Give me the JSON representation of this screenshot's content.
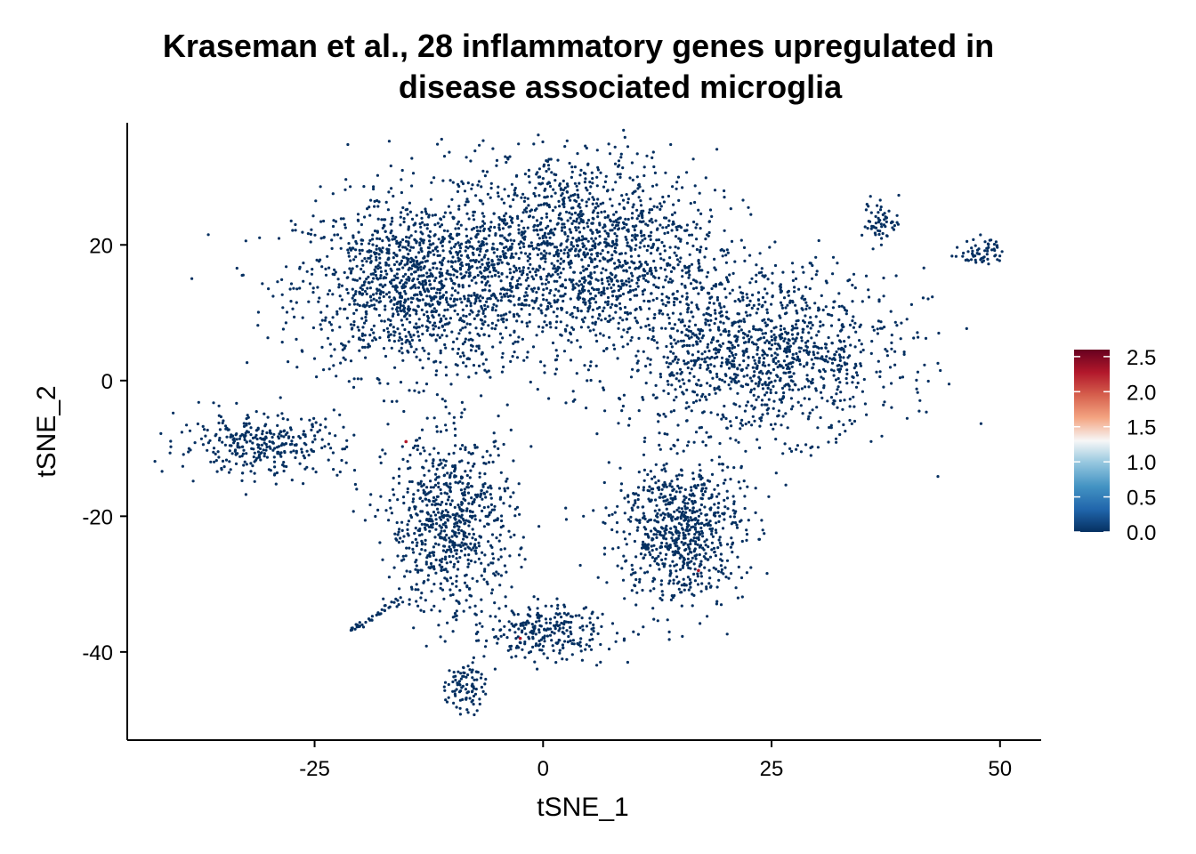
{
  "chart_data": {
    "type": "scatter",
    "title_lines": [
      "Kraseman et al., 28 inflammatory genes upregulated in",
      "disease associated microglia"
    ],
    "xlabel": "tSNE_1",
    "ylabel": "tSNE_2",
    "xlim": [
      -45.5,
      54.5
    ],
    "ylim": [
      -53,
      38
    ],
    "x_ticks": [
      -25,
      0,
      25,
      50
    ],
    "y_ticks": [
      20,
      0,
      -20,
      -40
    ],
    "point_color": "#053061",
    "highlight_color": "#B2182B",
    "colorbar": {
      "min": 0,
      "max": 2.6,
      "ticks": [
        "0.0",
        "0.5",
        "1.0",
        "1.5",
        "2.0",
        "2.5"
      ],
      "tick_values": [
        0,
        0.5,
        1.0,
        1.5,
        2.0,
        2.5
      ],
      "stops": [
        "#053061",
        "#2166AC",
        "#4393C3",
        "#92C5DE",
        "#F7F7F7",
        "#F4A582",
        "#D6604D",
        "#B2182B",
        "#67001F"
      ],
      "placement": "right"
    },
    "clusters": [
      {
        "name": "upper-left-lobe",
        "cx": -14,
        "cy": 14,
        "sx": 6.5,
        "sy": 6.5,
        "n": 1300
      },
      {
        "name": "upper-center-lobe",
        "cx": 4,
        "cy": 19,
        "sx": 7.5,
        "sy": 7.5,
        "n": 1600
      },
      {
        "name": "right-lobe",
        "cx": 24,
        "cy": 4,
        "sx": 7.5,
        "sy": 6,
        "n": 1200
      },
      {
        "name": "left-island",
        "cx": -31,
        "cy": -9.5,
        "sx": 4.5,
        "sy": 2.2,
        "n": 320
      },
      {
        "name": "lower-center-branch",
        "cx": -10,
        "cy": -21,
        "sx": 3.5,
        "sy": 6.5,
        "n": 750
      },
      {
        "name": "lower-right-branch",
        "cx": 15,
        "cy": -22,
        "sx": 3.5,
        "sy": 5.5,
        "n": 750
      },
      {
        "name": "bottom-tail",
        "cx": 0,
        "cy": -37,
        "sx": 4,
        "sy": 2,
        "n": 260
      },
      {
        "name": "bottom-small",
        "cx": -8.5,
        "cy": -45,
        "sx": 1,
        "sy": 2,
        "n": 90
      },
      {
        "name": "top-right-island-a",
        "cx": 37,
        "cy": 23.5,
        "sx": 1,
        "sy": 1.6,
        "n": 60
      },
      {
        "name": "top-right-island-b",
        "cx": 48,
        "cy": 19,
        "sx": 1.2,
        "sy": 1,
        "n": 60
      },
      {
        "name": "diagonal-streak",
        "cx": -18.5,
        "cy": -34.5,
        "sx": 1.2,
        "sy": 1.2,
        "n": 40
      }
    ]
  }
}
